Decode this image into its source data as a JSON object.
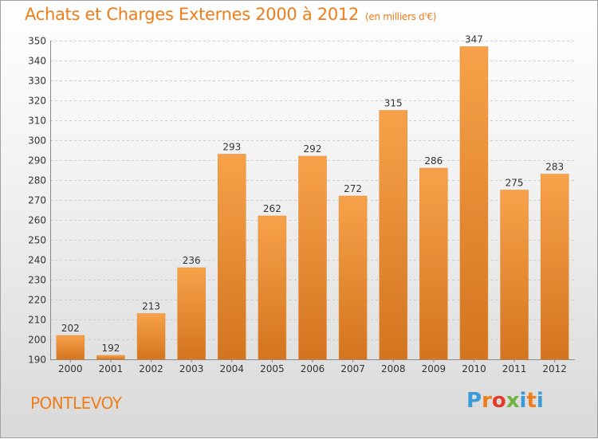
{
  "header": {
    "title": "Achats et Charges Externes 2000 à 2012",
    "subtitle": "(en milliers d'€)"
  },
  "footer": {
    "commune": "PONTLEVOY",
    "logo_text": "Proxiti",
    "logo_colors": [
      "#3b9ad8",
      "#ef7d1a",
      "#e23b2e",
      "#6cb33f",
      "#3b9ad8",
      "#ef7d1a",
      "#3b9ad8"
    ]
  },
  "chart_data": {
    "type": "bar",
    "categories": [
      "2000",
      "2001",
      "2002",
      "2003",
      "2004",
      "2005",
      "2006",
      "2007",
      "2008",
      "2009",
      "2010",
      "2011",
      "2012"
    ],
    "values": [
      202,
      192,
      213,
      236,
      293,
      262,
      292,
      272,
      315,
      286,
      347,
      275,
      283
    ],
    "ylim": [
      190,
      350
    ],
    "yticks": [
      190,
      200,
      210,
      220,
      230,
      240,
      250,
      260,
      270,
      280,
      290,
      300,
      310,
      320,
      330,
      340,
      350
    ],
    "grid": true,
    "bar_color_top": "#f7a24a",
    "bar_color_bottom": "#d4741f"
  }
}
